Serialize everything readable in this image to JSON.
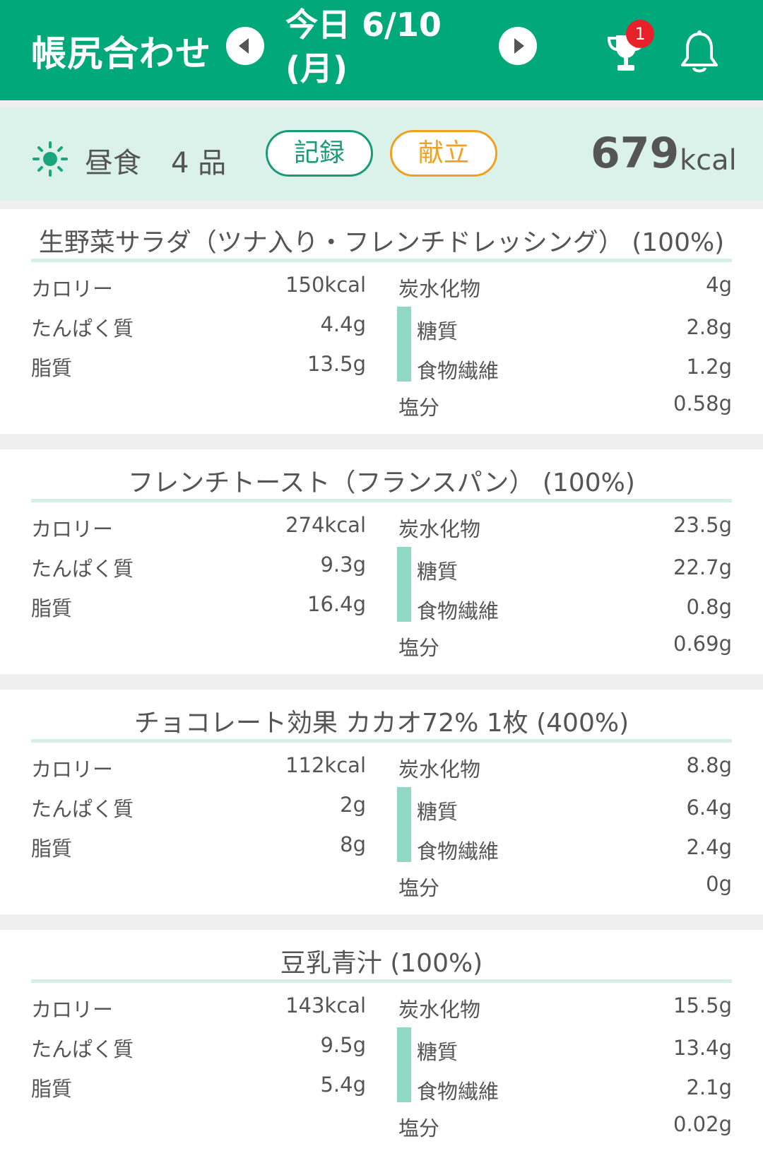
{
  "header": {
    "title": "帳尻合わせ",
    "date_line1": "今日 6/10",
    "date_line2": "(月)",
    "notification_count": "1"
  },
  "meal": {
    "name": "昼食",
    "count": "4 品",
    "record_label": "記録",
    "menu_label": "献立",
    "kcal_value": "679",
    "kcal_unit": "kcal"
  },
  "labels": {
    "calorie": "カロリー",
    "protein": "たんぱく質",
    "fat": "脂質",
    "carbs": "炭水化物",
    "sugar": "糖質",
    "fiber": "食物繊維",
    "salt": "塩分"
  },
  "foods": [
    {
      "title": "生野菜サラダ（ツナ入り・フレンチドレッシング） (100%)",
      "calorie": "150kcal",
      "protein": "4.4g",
      "fat": "13.5g",
      "carbs": "4g",
      "sugar": "2.8g",
      "fiber": "1.2g",
      "salt": "0.58g"
    },
    {
      "title": "フレンチトースト（フランスパン） (100%)",
      "calorie": "274kcal",
      "protein": "9.3g",
      "fat": "16.4g",
      "carbs": "23.5g",
      "sugar": "22.7g",
      "fiber": "0.8g",
      "salt": "0.69g"
    },
    {
      "title": "チョコレート効果 カカオ72% 1枚 (400%)",
      "calorie": "112kcal",
      "protein": "2g",
      "fat": "8g",
      "carbs": "8.8g",
      "sugar": "6.4g",
      "fiber": "2.4g",
      "salt": "0g"
    },
    {
      "title": "豆乳青汁 (100%)",
      "calorie": "143kcal",
      "protein": "9.5g",
      "fat": "5.4g",
      "carbs": "15.5g",
      "sugar": "13.4g",
      "fiber": "2.1g",
      "salt": "0.02g"
    }
  ],
  "colors": {
    "brand_green": "#00a87a",
    "meal_bar_bg": "#daf2ea",
    "record_accent": "#1a9b77",
    "menu_accent": "#f2a11e",
    "badge_red": "#e8202a",
    "sub_bar": "#8fd9c4"
  },
  "icons": {
    "prev": "chevron-left-icon",
    "next": "chevron-right-icon",
    "trophy": "trophy-icon",
    "bell": "bell-icon",
    "meal_time": "sun-icon"
  }
}
